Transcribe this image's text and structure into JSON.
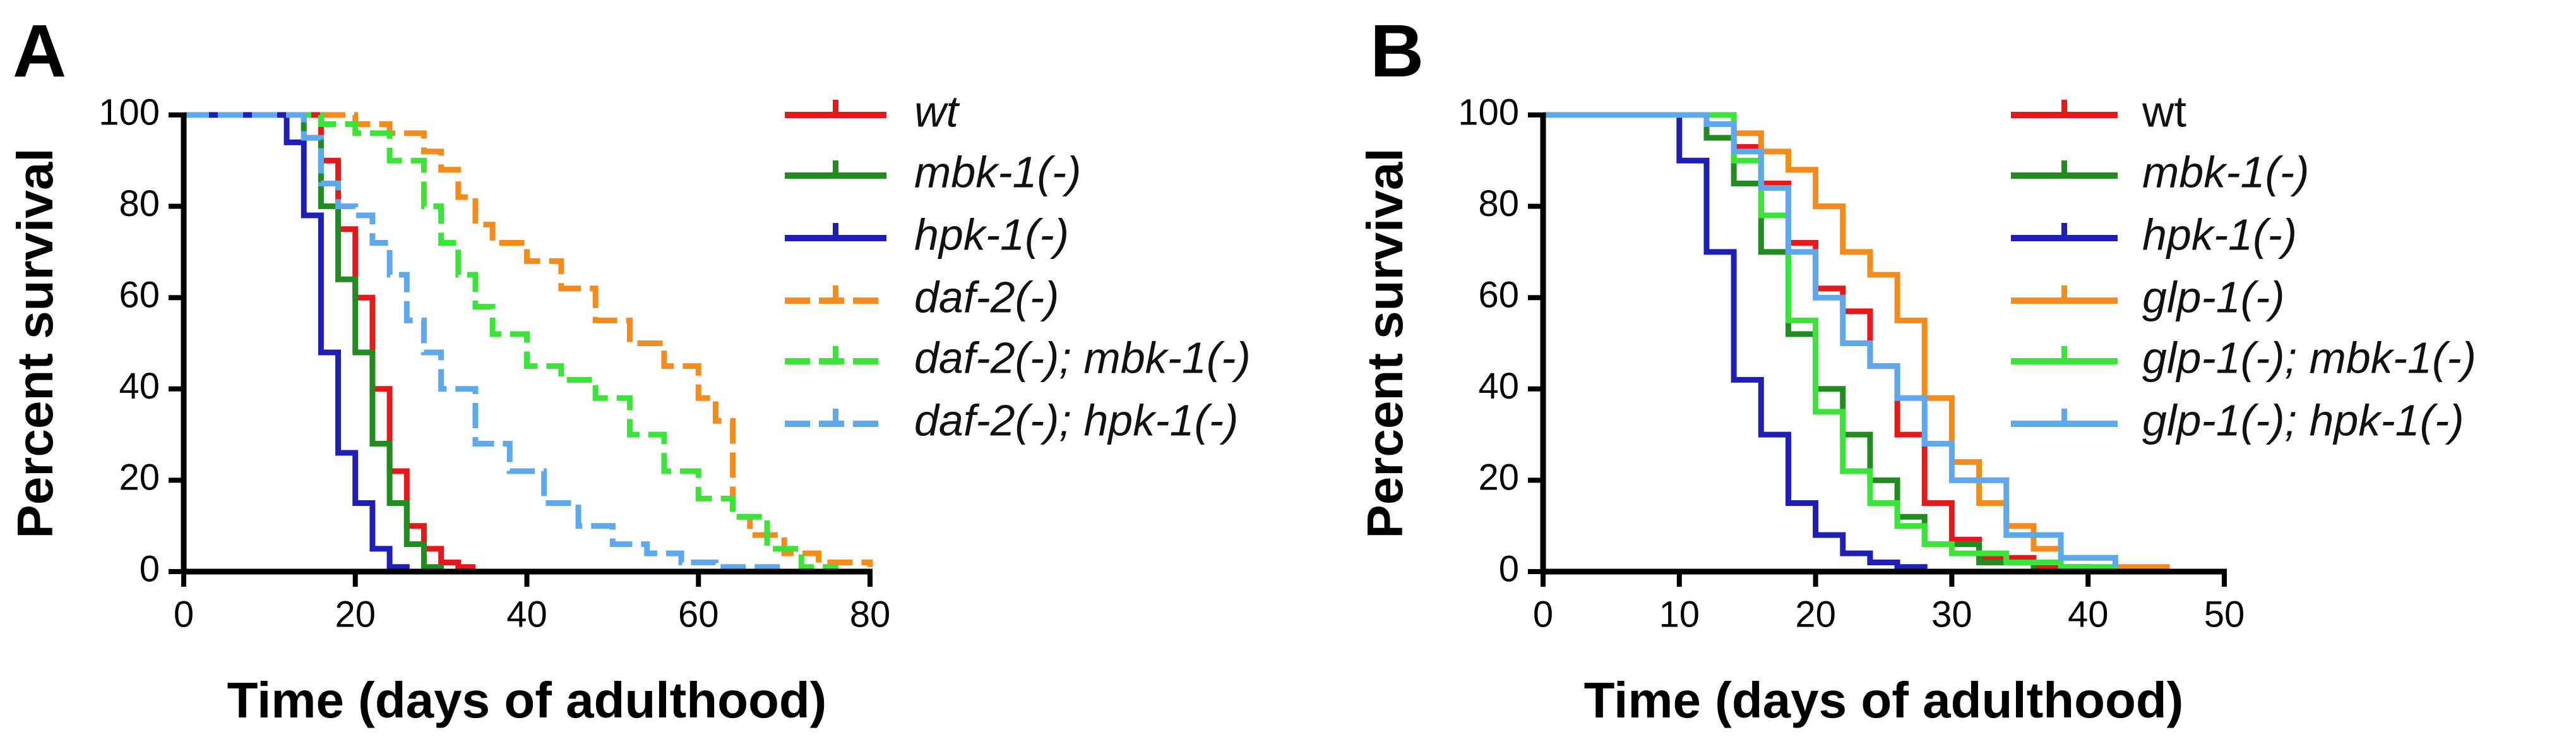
{
  "chart_data": [
    {
      "type": "line",
      "panel_label": "A",
      "xlabel": "Time (days of adulthood)",
      "ylabel": "Percent survival",
      "xlim": [
        0,
        80
      ],
      "xticks": [
        0,
        20,
        40,
        60,
        80
      ],
      "ylim": [
        0,
        100
      ],
      "yticks": [
        0,
        20,
        40,
        60,
        80,
        100
      ],
      "series": [
        {
          "name": "wt",
          "color": "#e31a1c",
          "dashed": false,
          "italic": true,
          "x": [
            0,
            14,
            16,
            18,
            20,
            22,
            24,
            26,
            28,
            30,
            32,
            34
          ],
          "values": [
            100,
            100,
            90,
            75,
            60,
            40,
            22,
            10,
            5,
            2,
            1,
            1
          ]
        },
        {
          "name": "mbk-1(-)",
          "color": "#238b22",
          "dashed": false,
          "italic": true,
          "x": [
            0,
            14,
            16,
            18,
            20,
            22,
            24,
            26,
            28,
            30
          ],
          "values": [
            100,
            95,
            80,
            64,
            48,
            28,
            15,
            6,
            1,
            0
          ]
        },
        {
          "name": "hpk-1(-)",
          "color": "#1f1fb4",
          "dashed": false,
          "italic": true,
          "x": [
            0,
            10,
            12,
            14,
            16,
            18,
            20,
            22,
            24,
            26
          ],
          "values": [
            100,
            100,
            94,
            78,
            48,
            26,
            15,
            5,
            1,
            0
          ]
        },
        {
          "name": "daf-2(-)",
          "color": "#f28c1e",
          "dashed": true,
          "italic": true,
          "x": [
            0,
            10,
            20,
            24,
            28,
            30,
            32,
            34,
            36,
            40,
            44,
            48,
            52,
            56,
            60,
            62,
            64,
            66,
            70,
            74,
            78,
            80
          ],
          "values": [
            100,
            100,
            98,
            96,
            92,
            88,
            82,
            76,
            72,
            68,
            62,
            55,
            50,
            45,
            38,
            33,
            12,
            8,
            4,
            2,
            2,
            1
          ]
        },
        {
          "name": "daf-2(-); mbk-1(-)",
          "color": "#3de23a",
          "dashed": true,
          "italic": true,
          "x": [
            0,
            10,
            16,
            20,
            24,
            28,
            30,
            32,
            34,
            36,
            40,
            44,
            48,
            52,
            56,
            60,
            64,
            68,
            72,
            76
          ],
          "values": [
            100,
            100,
            98,
            96,
            90,
            80,
            72,
            65,
            58,
            52,
            45,
            42,
            38,
            30,
            22,
            16,
            12,
            5,
            1,
            0
          ]
        },
        {
          "name": "daf-2(-); hpk-1(-)",
          "color": "#5fa8ec",
          "dashed": true,
          "italic": true,
          "x": [
            0,
            12,
            14,
            16,
            18,
            20,
            22,
            24,
            26,
            28,
            30,
            34,
            38,
            42,
            46,
            50,
            54,
            58,
            62,
            66,
            70
          ],
          "values": [
            100,
            100,
            95,
            85,
            80,
            78,
            72,
            65,
            55,
            48,
            40,
            28,
            22,
            15,
            10,
            6,
            4,
            2,
            1,
            1,
            0
          ]
        }
      ]
    },
    {
      "type": "line",
      "panel_label": "B",
      "xlabel": "Time (days of adulthood)",
      "ylabel": "Percent survival",
      "xlim": [
        0,
        50
      ],
      "xticks": [
        0,
        10,
        20,
        30,
        40,
        50
      ],
      "ylim": [
        0,
        100
      ],
      "yticks": [
        0,
        20,
        40,
        60,
        80,
        100
      ],
      "series": [
        {
          "name": "wt",
          "color": "#e31a1c",
          "dashed": false,
          "italic": false,
          "x": [
            0,
            10,
            12,
            14,
            16,
            18,
            20,
            22,
            24,
            26,
            28,
            30,
            32,
            36,
            40
          ],
          "values": [
            100,
            100,
            98,
            93,
            85,
            72,
            62,
            57,
            45,
            30,
            15,
            7,
            3,
            1,
            0
          ]
        },
        {
          "name": "mbk-1(-)",
          "color": "#238b22",
          "dashed": false,
          "italic": true,
          "x": [
            0,
            10,
            12,
            14,
            16,
            18,
            20,
            22,
            24,
            26,
            28,
            32,
            36
          ],
          "values": [
            100,
            100,
            95,
            85,
            70,
            52,
            40,
            30,
            20,
            12,
            6,
            2,
            0
          ]
        },
        {
          "name": "hpk-1(-)",
          "color": "#1f1fb4",
          "dashed": false,
          "italic": true,
          "x": [
            0,
            8,
            10,
            12,
            14,
            16,
            18,
            20,
            22,
            24,
            26,
            28
          ],
          "values": [
            100,
            100,
            90,
            70,
            42,
            30,
            15,
            8,
            4,
            2,
            1,
            0
          ]
        },
        {
          "name": "glp-1(-)",
          "color": "#f28c1e",
          "dashed": false,
          "italic": true,
          "x": [
            0,
            12,
            14,
            16,
            18,
            20,
            22,
            24,
            26,
            28,
            30,
            32,
            34,
            36,
            38,
            42,
            46
          ],
          "values": [
            100,
            100,
            96,
            92,
            88,
            80,
            70,
            65,
            55,
            38,
            24,
            15,
            10,
            5,
            3,
            1,
            1
          ]
        },
        {
          "name": "glp-1(-); mbk-1(-)",
          "color": "#3de23a",
          "dashed": false,
          "italic": true,
          "x": [
            0,
            12,
            14,
            16,
            18,
            20,
            22,
            24,
            26,
            28,
            30,
            34,
            38,
            42
          ],
          "values": [
            100,
            100,
            90,
            78,
            55,
            35,
            22,
            15,
            10,
            6,
            4,
            2,
            1,
            0
          ]
        },
        {
          "name": "glp-1(-); hpk-1(-)",
          "color": "#5fa8ec",
          "dashed": false,
          "italic": true,
          "x": [
            0,
            10,
            12,
            14,
            16,
            18,
            20,
            22,
            24,
            26,
            28,
            30,
            34,
            38,
            42
          ],
          "values": [
            100,
            100,
            98,
            92,
            84,
            70,
            60,
            50,
            45,
            38,
            28,
            20,
            8,
            3,
            1
          ]
        }
      ]
    }
  ]
}
